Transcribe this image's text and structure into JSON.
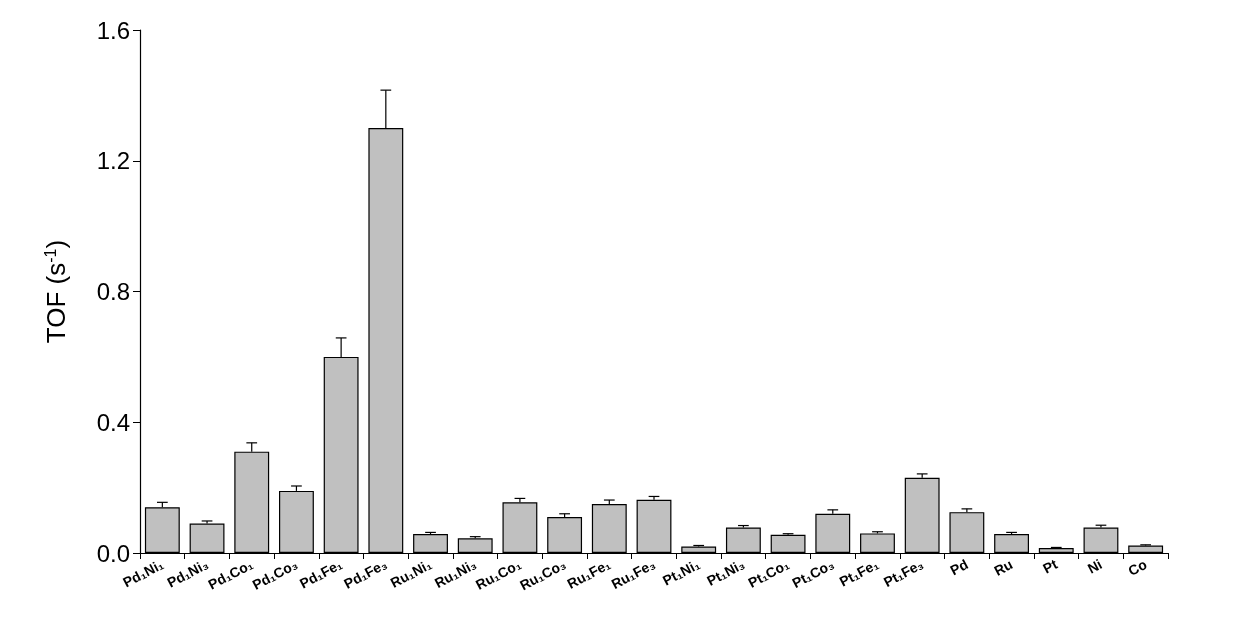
{
  "chart_data": {
    "type": "bar",
    "ylabel": "TOF (s$^{-1}$)",
    "categories": [
      "Pd₁Ni₁",
      "Pd₁Ni₃",
      "Pd₁Co₁",
      "Pd₁Co₃",
      "Pd₁Fe₁",
      "Pd₁Fe₃",
      "Ru₁Ni₁",
      "Ru₁Ni₃",
      "Ru₁Co₁",
      "Ru₁Co₃",
      "Ru₁Fe₁",
      "Ru₁Fe₃",
      "Pt₁Ni₁",
      "Pt₁Ni₃",
      "Pt₁Co₁",
      "Pt₁Co₃",
      "Pt₁Fe₁",
      "Pt₁Fe₃",
      "Pd",
      "Ru",
      "Pt",
      "Ni",
      "Co"
    ],
    "values": [
      0.14,
      0.09,
      0.31,
      0.19,
      0.6,
      1.3,
      0.058,
      0.045,
      0.155,
      0.11,
      0.15,
      0.163,
      0.02,
      0.078,
      0.056,
      0.12,
      0.06,
      0.23,
      0.125,
      0.058,
      0.015,
      0.078,
      0.023
    ],
    "errors": [
      [
        0.14,
        0.155
      ],
      [
        0.09,
        0.098
      ],
      [
        0.31,
        0.337
      ],
      [
        0.19,
        0.205
      ],
      [
        0.6,
        0.658
      ],
      [
        1.3,
        1.416
      ],
      [
        0.058,
        0.063
      ],
      [
        0.045,
        0.05
      ],
      [
        0.155,
        0.167
      ],
      [
        0.11,
        0.12
      ],
      [
        0.15,
        0.162
      ],
      [
        0.163,
        0.173
      ],
      [
        0.02,
        0.023
      ],
      [
        0.078,
        0.084
      ],
      [
        0.056,
        0.059
      ],
      [
        0.12,
        0.132
      ],
      [
        0.06,
        0.065
      ],
      [
        0.23,
        0.242
      ],
      [
        0.125,
        0.135
      ],
      [
        0.058,
        0.063
      ],
      [
        0.015,
        0.017
      ],
      [
        0.078,
        0.085
      ],
      [
        0.023,
        0.025
      ]
    ],
    "color": "#c0c0c0",
    "ylim": [
      0,
      1.6
    ],
    "yticks": [
      {
        "value": 0,
        "label": "0.0"
      },
      {
        "value": 0.4,
        "label": "0.4"
      },
      {
        "value": 0.8,
        "label": "0.8"
      },
      {
        "value": 1.2,
        "label": "1.2"
      },
      {
        "value": 1.6,
        "label": "1.6"
      }
    ],
    "grid": false
  }
}
